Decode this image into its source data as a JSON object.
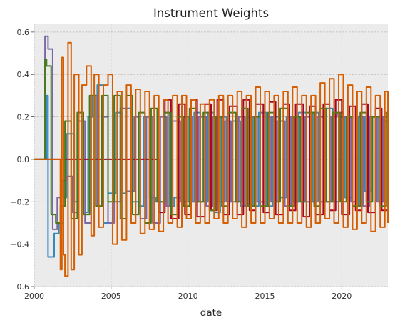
{
  "chart_data": {
    "type": "line",
    "title": "Instrument Weights",
    "xlabel": "date",
    "ylabel": "",
    "x_ticks": [
      "2000",
      "2005",
      "2010",
      "2015",
      "2020"
    ],
    "y_ticks": [
      "0.6",
      "0.4",
      "0.2",
      "0.0",
      "−0.2",
      "−0.4",
      "−0.6"
    ],
    "xlim": [
      2000.0,
      2023.0
    ],
    "ylim": [
      -0.6,
      0.64
    ],
    "grid": true,
    "legend": "none",
    "background_color": "#ebebeb",
    "series_colors": [
      "#348abd",
      "#7a68a6",
      "#a60628",
      "#467821",
      "#d55e00"
    ],
    "series": [
      {
        "x": [
          2000.0,
          2000.3,
          2000.6,
          2000.8,
          2000.9,
          2001.3,
          2001.6,
          2001.9,
          2002.1,
          2002.6,
          2002.8,
          2003.2,
          2003.5,
          2003.8,
          2004.1,
          2004.5,
          2004.8,
          2005.3,
          2005.7,
          2006.0,
          2006.4,
          2006.8,
          2007.1,
          2007.5,
          2007.9,
          2008.4,
          2008.8,
          2009.1,
          2009.6,
          2010.0,
          2010.4,
          2010.8,
          2011.3,
          2011.7,
          2012.1,
          2012.5,
          2012.9,
          2013.4,
          2013.8,
          2014.2,
          2014.6,
          2015.1,
          2015.5,
          2015.9,
          2016.4,
          2016.8,
          2017.2,
          2017.7,
          2018.1,
          2018.5,
          2019.0,
          2019.4,
          2019.8,
          2020.2,
          2020.7,
          2021.1,
          2021.5,
          2021.9,
          2022.4,
          2022.8,
          2023.0
        ],
        "y": [
          0.0,
          0.0,
          0.0,
          0.3,
          -0.46,
          -0.35,
          -0.3,
          -0.18,
          0.12,
          -0.2,
          0.22,
          -0.25,
          0.2,
          0.3,
          0.35,
          -0.3,
          -0.16,
          0.22,
          -0.16,
          0.24,
          -0.2,
          -0.22,
          0.2,
          -0.18,
          -0.2,
          0.22,
          -0.22,
          -0.18,
          0.2,
          -0.2,
          0.22,
          -0.2,
          0.22,
          -0.25,
          0.2,
          -0.2,
          0.18,
          -0.22,
          0.2,
          -0.22,
          0.22,
          -0.22,
          0.2,
          -0.18,
          0.2,
          -0.2,
          0.22,
          -0.2,
          0.22,
          -0.2,
          0.24,
          -0.2,
          0.2,
          -0.18,
          -0.22,
          0.2,
          -0.15,
          0.2,
          -0.2,
          0.18,
          0.18
        ]
      },
      {
        "x": [
          2000.0,
          2000.3,
          2000.5,
          2000.7,
          2000.9,
          2001.2,
          2001.5,
          2001.8,
          2002.1,
          2002.5,
          2002.9,
          2003.3,
          2003.7,
          2004.1,
          2004.4,
          2004.8,
          2005.2,
          2005.6,
          2006.0,
          2006.5,
          2006.9,
          2007.3,
          2007.7,
          2008.2,
          2008.6,
          2009.0,
          2009.5,
          2009.9,
          2010.3,
          2010.7,
          2011.2,
          2011.6,
          2012.0,
          2012.4,
          2012.8,
          2013.3,
          2013.7,
          2014.1,
          2014.5,
          2015.0,
          2015.4,
          2015.8,
          2016.3,
          2016.7,
          2017.1,
          2017.6,
          2018.0,
          2018.4,
          2018.9,
          2019.3,
          2019.7,
          2020.1,
          2020.6,
          2021.0,
          2021.4,
          2021.8,
          2022.3,
          2022.7,
          2023.0
        ],
        "y": [
          0.0,
          0.0,
          0.0,
          0.58,
          0.52,
          -0.33,
          -0.18,
          -0.1,
          -0.08,
          -0.25,
          0.18,
          -0.3,
          0.3,
          -0.22,
          0.2,
          -0.3,
          -0.2,
          0.24,
          -0.15,
          0.2,
          -0.28,
          0.2,
          -0.3,
          0.2,
          -0.22,
          0.18,
          -0.2,
          0.2,
          -0.2,
          0.2,
          -0.22,
          0.2,
          -0.2,
          0.18,
          -0.2,
          0.2,
          -0.22,
          0.2,
          -0.2,
          0.2,
          -0.2,
          0.18,
          -0.22,
          0.2,
          -0.2,
          0.2,
          -0.2,
          0.2,
          -0.2,
          0.2,
          0.22,
          0.2,
          -0.2,
          0.2,
          -0.22,
          0.2,
          -0.2,
          0.2,
          0.2
        ]
      },
      {
        "x": [
          2000.0,
          2000.5,
          2001.0,
          2001.5,
          2002.0,
          2003.0,
          2004.0,
          2005.0,
          2006.0,
          2007.0,
          2007.8,
          2008.1,
          2008.5,
          2008.9,
          2009.4,
          2009.8,
          2010.2,
          2010.6,
          2011.1,
          2011.5,
          2011.9,
          2012.3,
          2012.7,
          2013.2,
          2013.6,
          2014.0,
          2014.4,
          2014.9,
          2015.3,
          2015.7,
          2016.2,
          2016.6,
          2017.0,
          2017.5,
          2017.9,
          2018.3,
          2018.8,
          2019.2,
          2019.6,
          2020.0,
          2020.5,
          2020.9,
          2021.3,
          2021.7,
          2022.2,
          2022.6,
          2023.0
        ],
        "y": [
          0.0,
          0.0,
          0.0,
          0.0,
          0.0,
          0.0,
          0.0,
          0.0,
          0.0,
          0.0,
          0.0,
          -0.25,
          0.28,
          -0.28,
          0.26,
          -0.26,
          0.28,
          -0.27,
          0.26,
          -0.24,
          0.28,
          -0.26,
          0.25,
          -0.26,
          0.28,
          -0.24,
          0.26,
          -0.25,
          0.27,
          -0.26,
          0.26,
          -0.24,
          0.26,
          -0.27,
          0.25,
          -0.26,
          0.26,
          -0.24,
          0.28,
          -0.26,
          0.25,
          -0.24,
          0.26,
          -0.25,
          0.24,
          -0.24,
          0.22
        ]
      },
      {
        "x": [
          2000.0,
          2000.3,
          2000.5,
          2000.7,
          2000.8,
          2001.1,
          2001.4,
          2001.7,
          2002.0,
          2002.4,
          2002.8,
          2003.2,
          2003.6,
          2004.0,
          2004.4,
          2004.8,
          2005.2,
          2005.6,
          2006.0,
          2006.4,
          2006.8,
          2007.2,
          2007.6,
          2008.0,
          2008.5,
          2008.9,
          2009.3,
          2009.7,
          2010.1,
          2010.5,
          2011.0,
          2011.4,
          2011.8,
          2012.2,
          2012.6,
          2013.1,
          2013.5,
          2013.9,
          2014.3,
          2014.7,
          2015.2,
          2015.6,
          2016.0,
          2016.5,
          2016.9,
          2017.3,
          2017.7,
          2018.2,
          2018.6,
          2019.0,
          2019.4,
          2019.9,
          2020.3,
          2020.7,
          2021.2,
          2021.6,
          2022.0,
          2022.5,
          2022.9,
          2023.0
        ],
        "y": [
          0.0,
          0.0,
          0.0,
          0.47,
          0.44,
          -0.26,
          -0.3,
          -0.22,
          0.18,
          -0.28,
          0.22,
          -0.26,
          0.3,
          -0.22,
          0.3,
          -0.2,
          0.3,
          -0.28,
          0.3,
          -0.26,
          0.22,
          -0.3,
          0.24,
          -0.2,
          0.22,
          -0.26,
          0.2,
          -0.22,
          0.24,
          -0.2,
          0.22,
          -0.24,
          0.2,
          -0.22,
          0.22,
          -0.2,
          0.24,
          -0.22,
          0.2,
          -0.22,
          0.22,
          -0.2,
          0.24,
          -0.22,
          0.2,
          -0.2,
          0.22,
          -0.22,
          0.24,
          -0.2,
          0.22,
          -0.2,
          0.2,
          -0.22,
          0.22,
          -0.2,
          0.2,
          -0.22,
          0.22,
          0.22
        ]
      },
      {
        "x": [
          2000.0,
          2000.5,
          2001.0,
          2001.5,
          2001.7,
          2001.8,
          2001.9,
          2002.0,
          2002.2,
          2002.4,
          2002.6,
          2002.9,
          2003.1,
          2003.4,
          2003.7,
          2003.9,
          2004.2,
          2004.5,
          2004.8,
          2005.1,
          2005.4,
          2005.7,
          2006.0,
          2006.3,
          2006.6,
          2006.9,
          2007.2,
          2007.5,
          2007.8,
          2008.1,
          2008.4,
          2008.7,
          2009.0,
          2009.3,
          2009.6,
          2009.9,
          2010.2,
          2010.5,
          2010.8,
          2011.1,
          2011.4,
          2011.7,
          2012.0,
          2012.3,
          2012.6,
          2012.9,
          2013.2,
          2013.5,
          2013.8,
          2014.1,
          2014.4,
          2014.7,
          2015.0,
          2015.3,
          2015.6,
          2015.9,
          2016.2,
          2016.5,
          2016.8,
          2017.1,
          2017.4,
          2017.7,
          2018.0,
          2018.3,
          2018.6,
          2018.9,
          2019.2,
          2019.5,
          2019.8,
          2020.1,
          2020.4,
          2020.7,
          2021.0,
          2021.3,
          2021.6,
          2021.9,
          2022.2,
          2022.5,
          2022.8,
          2023.0
        ],
        "y": [
          0.0,
          0.0,
          0.0,
          0.0,
          -0.52,
          0.48,
          -0.45,
          -0.55,
          0.55,
          -0.52,
          0.4,
          -0.45,
          0.35,
          0.44,
          -0.36,
          0.4,
          -0.32,
          0.35,
          0.4,
          -0.4,
          0.32,
          -0.38,
          0.35,
          -0.3,
          0.33,
          -0.35,
          0.32,
          -0.33,
          0.3,
          -0.34,
          0.28,
          -0.3,
          0.3,
          -0.32,
          0.3,
          -0.28,
          0.28,
          -0.3,
          0.26,
          -0.3,
          0.28,
          -0.28,
          0.3,
          -0.3,
          0.3,
          -0.28,
          0.32,
          -0.32,
          0.3,
          -0.3,
          0.34,
          -0.3,
          0.32,
          -0.28,
          0.3,
          -0.3,
          0.32,
          -0.3,
          0.34,
          -0.3,
          0.3,
          -0.32,
          0.3,
          -0.3,
          0.36,
          -0.28,
          0.38,
          -0.3,
          0.4,
          -0.32,
          0.35,
          -0.33,
          0.32,
          -0.3,
          0.34,
          -0.34,
          0.3,
          -0.32,
          0.32,
          -0.3
        ]
      }
    ]
  }
}
